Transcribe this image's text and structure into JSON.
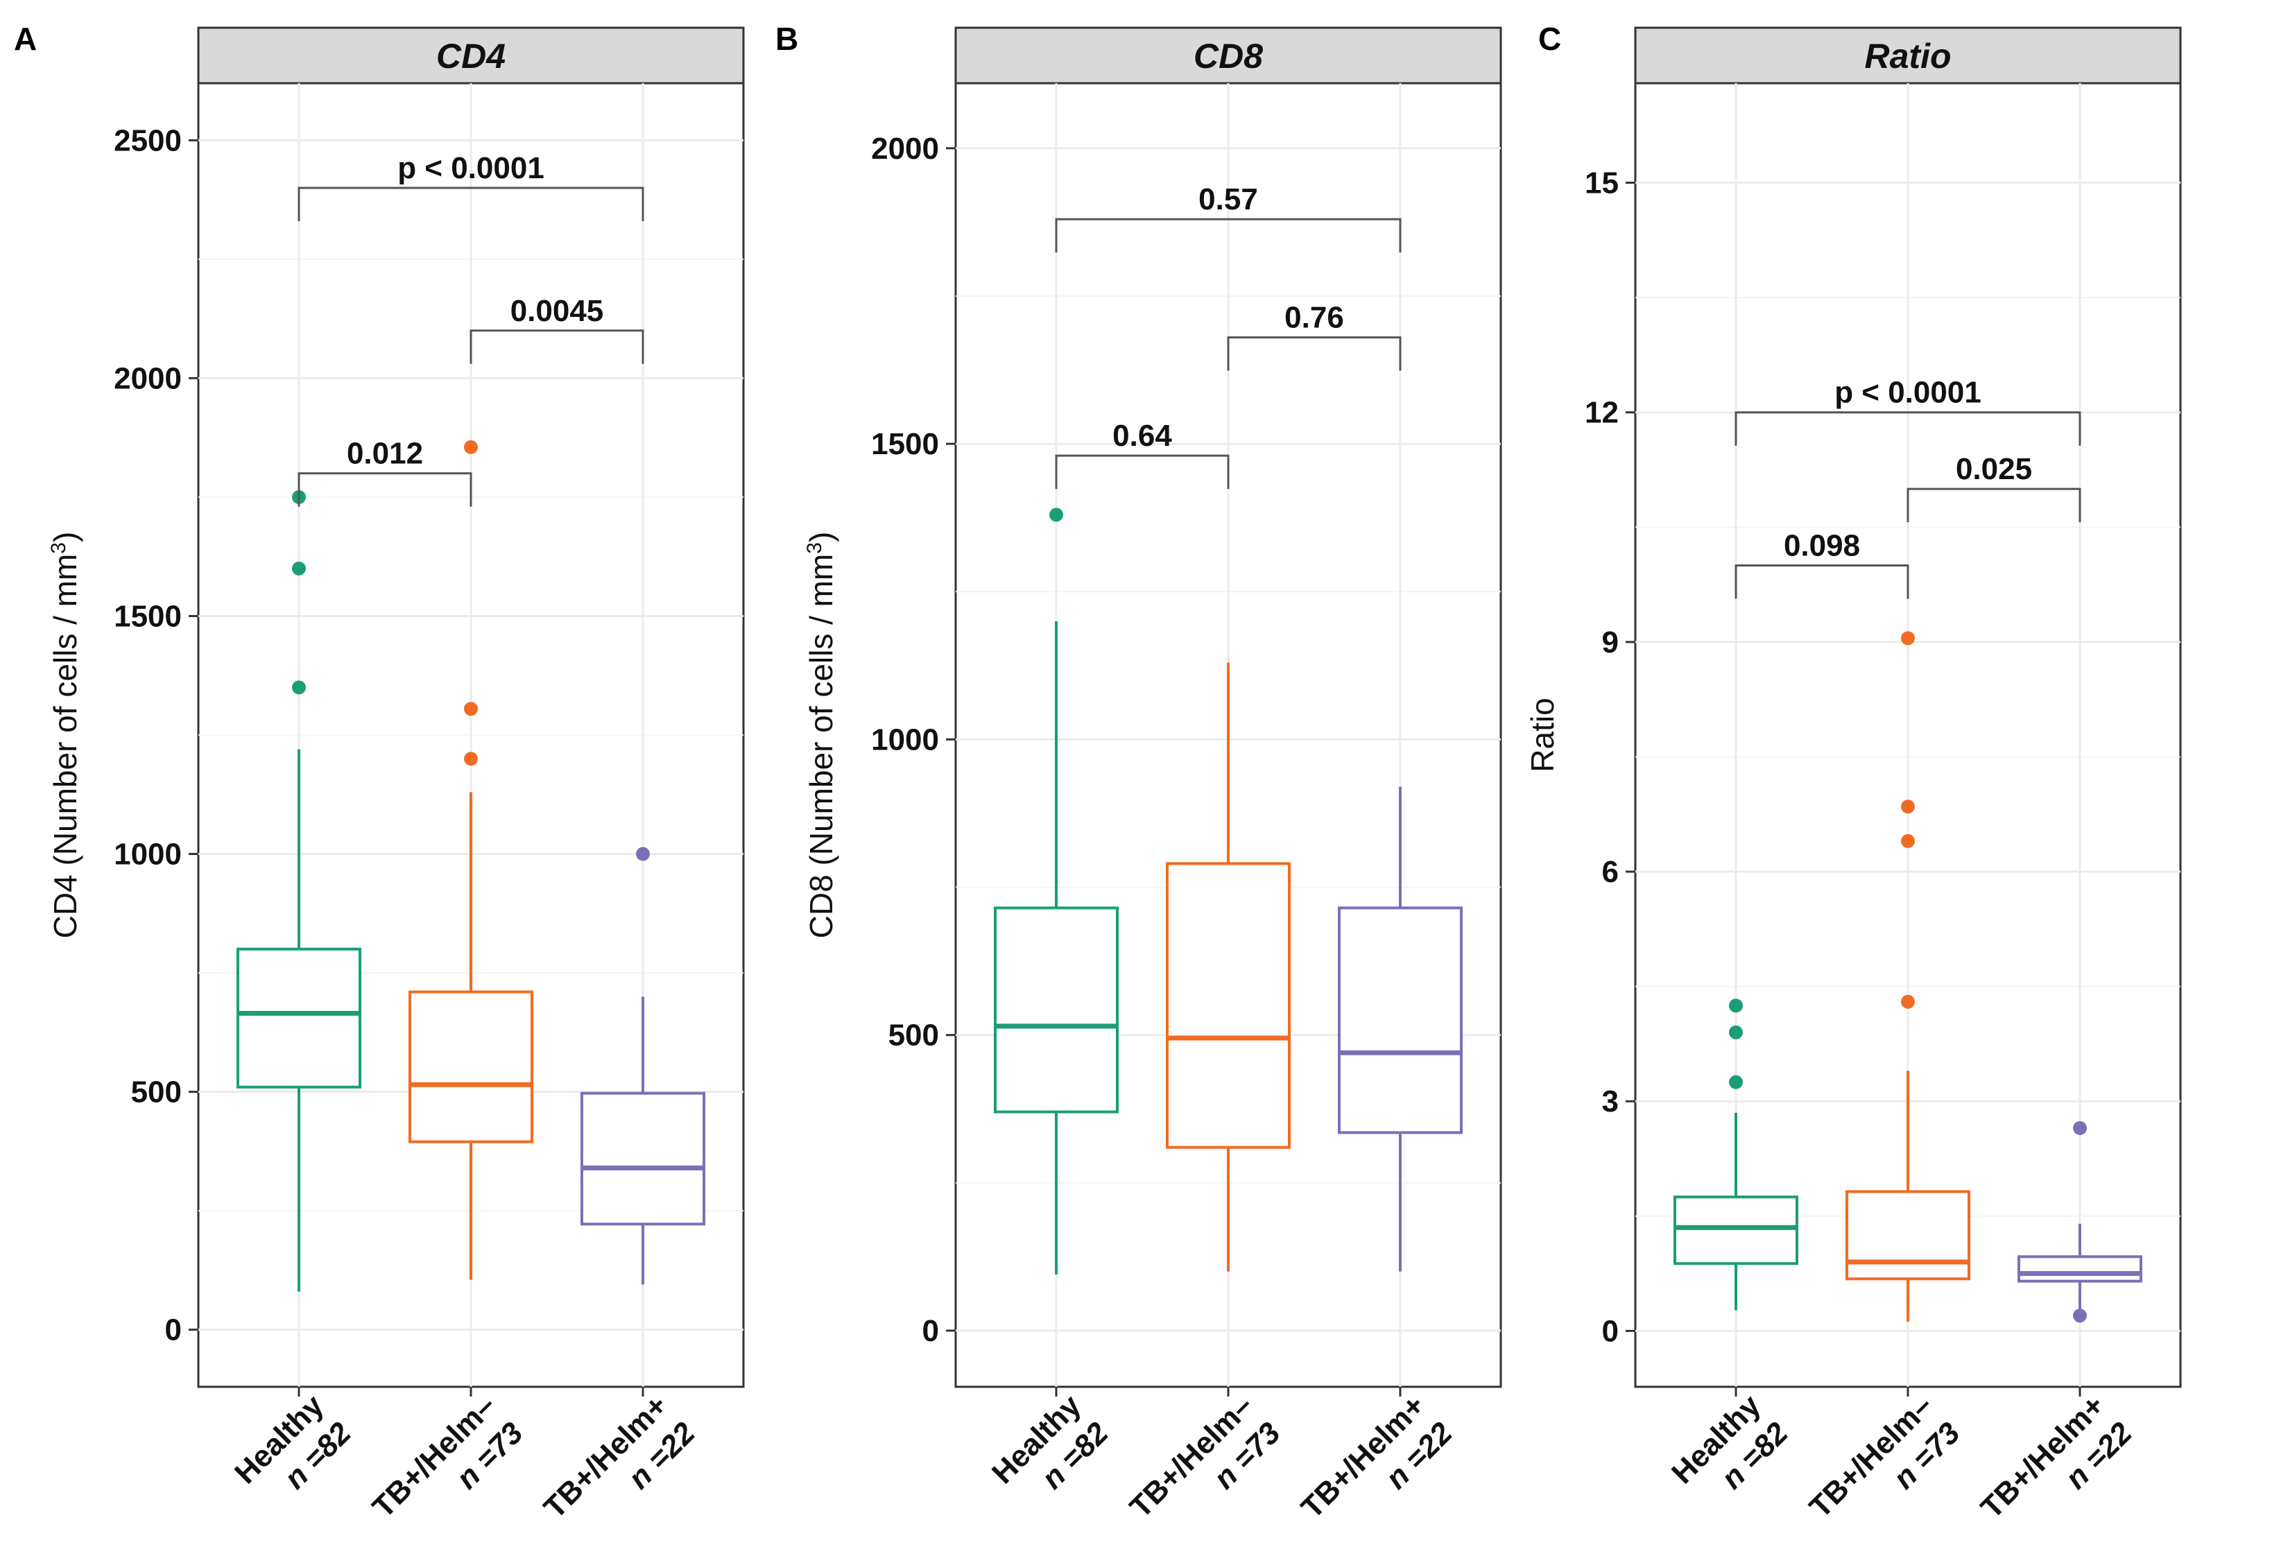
{
  "chart_data": [
    {
      "type": "box",
      "panel_label": "A",
      "title": "CD4",
      "ylabel": "CD4 (Number of cells / mm",
      "ylabel_sup": "3",
      "ylabel_close": ")",
      "ylim": [
        -120,
        2620
      ],
      "yticks": [
        0,
        500,
        1000,
        1500,
        2000,
        2500
      ],
      "categories": [
        "Healthy",
        "TB+/Helm–",
        "TB+/Helm+"
      ],
      "n_labels": [
        "n =82",
        "n =73",
        "n =22"
      ],
      "colors": [
        "#1a9e77",
        "#f26b22",
        "#7b70b8"
      ],
      "boxes": [
        {
          "whisker_low": 80,
          "q1": 510,
          "median": 665,
          "q3": 800,
          "whisker_high": 1220,
          "outliers": [
            1350,
            1600,
            1750
          ]
        },
        {
          "whisker_low": 105,
          "q1": 395,
          "median": 515,
          "q3": 710,
          "whisker_high": 1130,
          "outliers": [
            1200,
            1305,
            1855
          ]
        },
        {
          "whisker_low": 95,
          "q1": 222,
          "median": 340,
          "q3": 497,
          "whisker_high": 700,
          "outliers": [
            1000
          ]
        }
      ],
      "comparisons": [
        {
          "from": 0,
          "to": 1,
          "y": 1800,
          "label": "0.012"
        },
        {
          "from": 1,
          "to": 2,
          "y": 2100,
          "label": "0.0045"
        },
        {
          "from": 0,
          "to": 2,
          "y": 2400,
          "label": "p < 0.0001"
        }
      ]
    },
    {
      "type": "box",
      "panel_label": "B",
      "title": "CD8",
      "ylabel": "CD8 (Number of cells / mm",
      "ylabel_sup": "3",
      "ylabel_close": ")",
      "ylim": [
        -95,
        2110
      ],
      "yticks": [
        0,
        500,
        1000,
        1500,
        2000
      ],
      "categories": [
        "Healthy",
        "TB+/Helm–",
        "TB+/Helm+"
      ],
      "n_labels": [
        "n =82",
        "n =73",
        "n =22"
      ],
      "colors": [
        "#1a9e77",
        "#f26b22",
        "#7b70b8"
      ],
      "boxes": [
        {
          "whisker_low": 95,
          "q1": 370,
          "median": 515,
          "q3": 715,
          "whisker_high": 1200,
          "outliers": [
            1380
          ]
        },
        {
          "whisker_low": 100,
          "q1": 310,
          "median": 495,
          "q3": 790,
          "whisker_high": 1130,
          "outliers": []
        },
        {
          "whisker_low": 100,
          "q1": 335,
          "median": 470,
          "q3": 715,
          "whisker_high": 920,
          "outliers": []
        }
      ],
      "comparisons": [
        {
          "from": 0,
          "to": 1,
          "y": 1480,
          "label": "0.64"
        },
        {
          "from": 1,
          "to": 2,
          "y": 1680,
          "label": "0.76"
        },
        {
          "from": 0,
          "to": 2,
          "y": 1880,
          "label": "0.57"
        }
      ]
    },
    {
      "type": "box",
      "panel_label": "C",
      "title": "Ratio",
      "ylabel": "Ratio",
      "ylabel_sup": "",
      "ylabel_close": "",
      "ylim": [
        -0.73,
        16.3
      ],
      "yticks": [
        0,
        3,
        6,
        9,
        12,
        15
      ],
      "categories": [
        "Healthy",
        "TB+/Helm–",
        "TB+/Helm+"
      ],
      "n_labels": [
        "n =82",
        "n =73",
        "n =22"
      ],
      "colors": [
        "#1a9e77",
        "#f26b22",
        "#7b70b8"
      ],
      "boxes": [
        {
          "whisker_low": 0.27,
          "q1": 0.88,
          "median": 1.35,
          "q3": 1.75,
          "whisker_high": 2.85,
          "outliers": [
            3.25,
            3.9,
            4.25
          ]
        },
        {
          "whisker_low": 0.12,
          "q1": 0.68,
          "median": 0.9,
          "q3": 1.82,
          "whisker_high": 3.4,
          "outliers": [
            4.3,
            6.4,
            6.85,
            9.05
          ]
        },
        {
          "whisker_low": 0.15,
          "q1": 0.65,
          "median": 0.75,
          "q3": 0.97,
          "whisker_high": 1.4,
          "outliers": [
            0.2,
            2.65
          ]
        }
      ],
      "comparisons": [
        {
          "from": 0,
          "to": 1,
          "y": 10.0,
          "label": "0.098"
        },
        {
          "from": 1,
          "to": 2,
          "y": 11.0,
          "label": "0.025"
        },
        {
          "from": 0,
          "to": 2,
          "y": 12.0,
          "label": "p < 0.0001"
        }
      ]
    }
  ]
}
